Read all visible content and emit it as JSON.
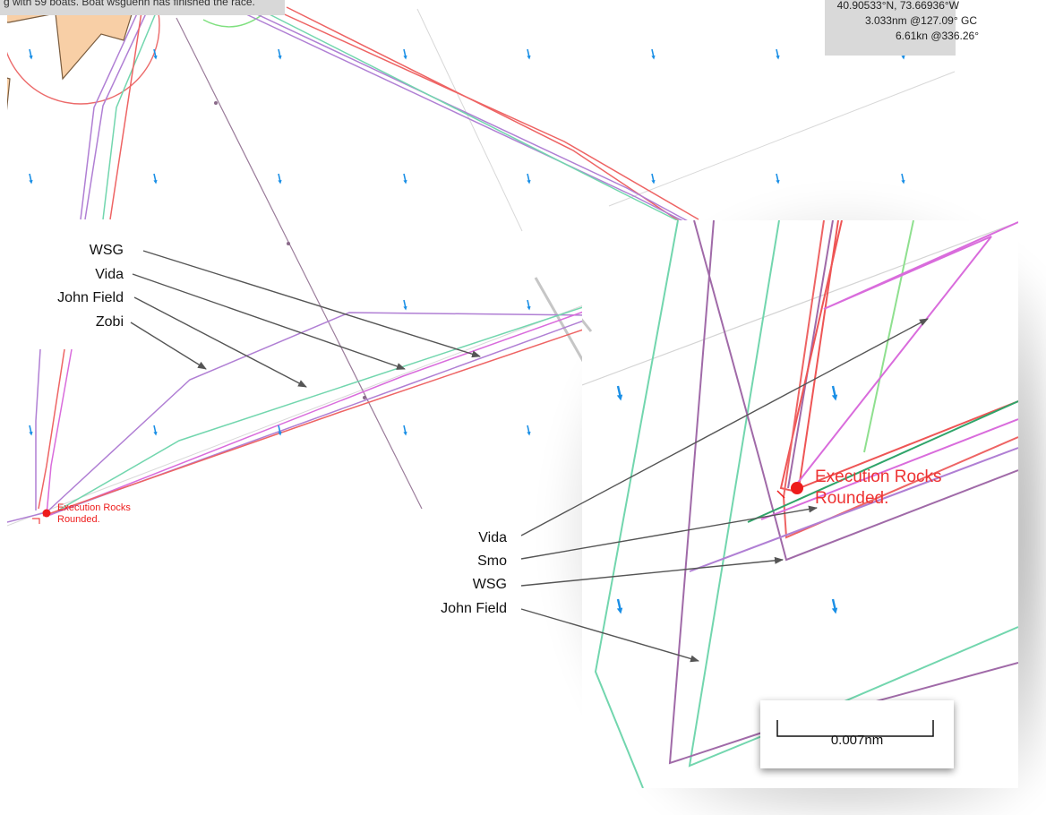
{
  "status_bar": {
    "text": "g with 59 boats. Boat wsguenn has finished the race."
  },
  "cursor_info": {
    "position": "40.90533°N, 73.66936°W",
    "bearing_distance": "3.033nm @127.09° GC",
    "speed_course": "6.61kn @336.26°"
  },
  "main_map": {
    "mark_label_line1": "Execution Rocks",
    "mark_label_line2": "Rounded."
  },
  "inset_map": {
    "mark_label_line1": "Execution Rocks",
    "mark_label_line2": "Rounded."
  },
  "annotations_left": [
    "WSG",
    "Vida",
    "John Field",
    "Zobi"
  ],
  "annotations_right": [
    "Vida",
    "Smo",
    "WSG",
    "John Field"
  ],
  "scale": {
    "label": "0.007nm"
  },
  "colors": {
    "land": "#f8cfa6",
    "mark": "#ee1c1c",
    "wind_arrow": "#1a8fe6",
    "track_red": "#ef6a6a",
    "track_purple": "#b07fd4",
    "track_green": "#72d6ae",
    "track_magenta": "#d96cdc"
  }
}
